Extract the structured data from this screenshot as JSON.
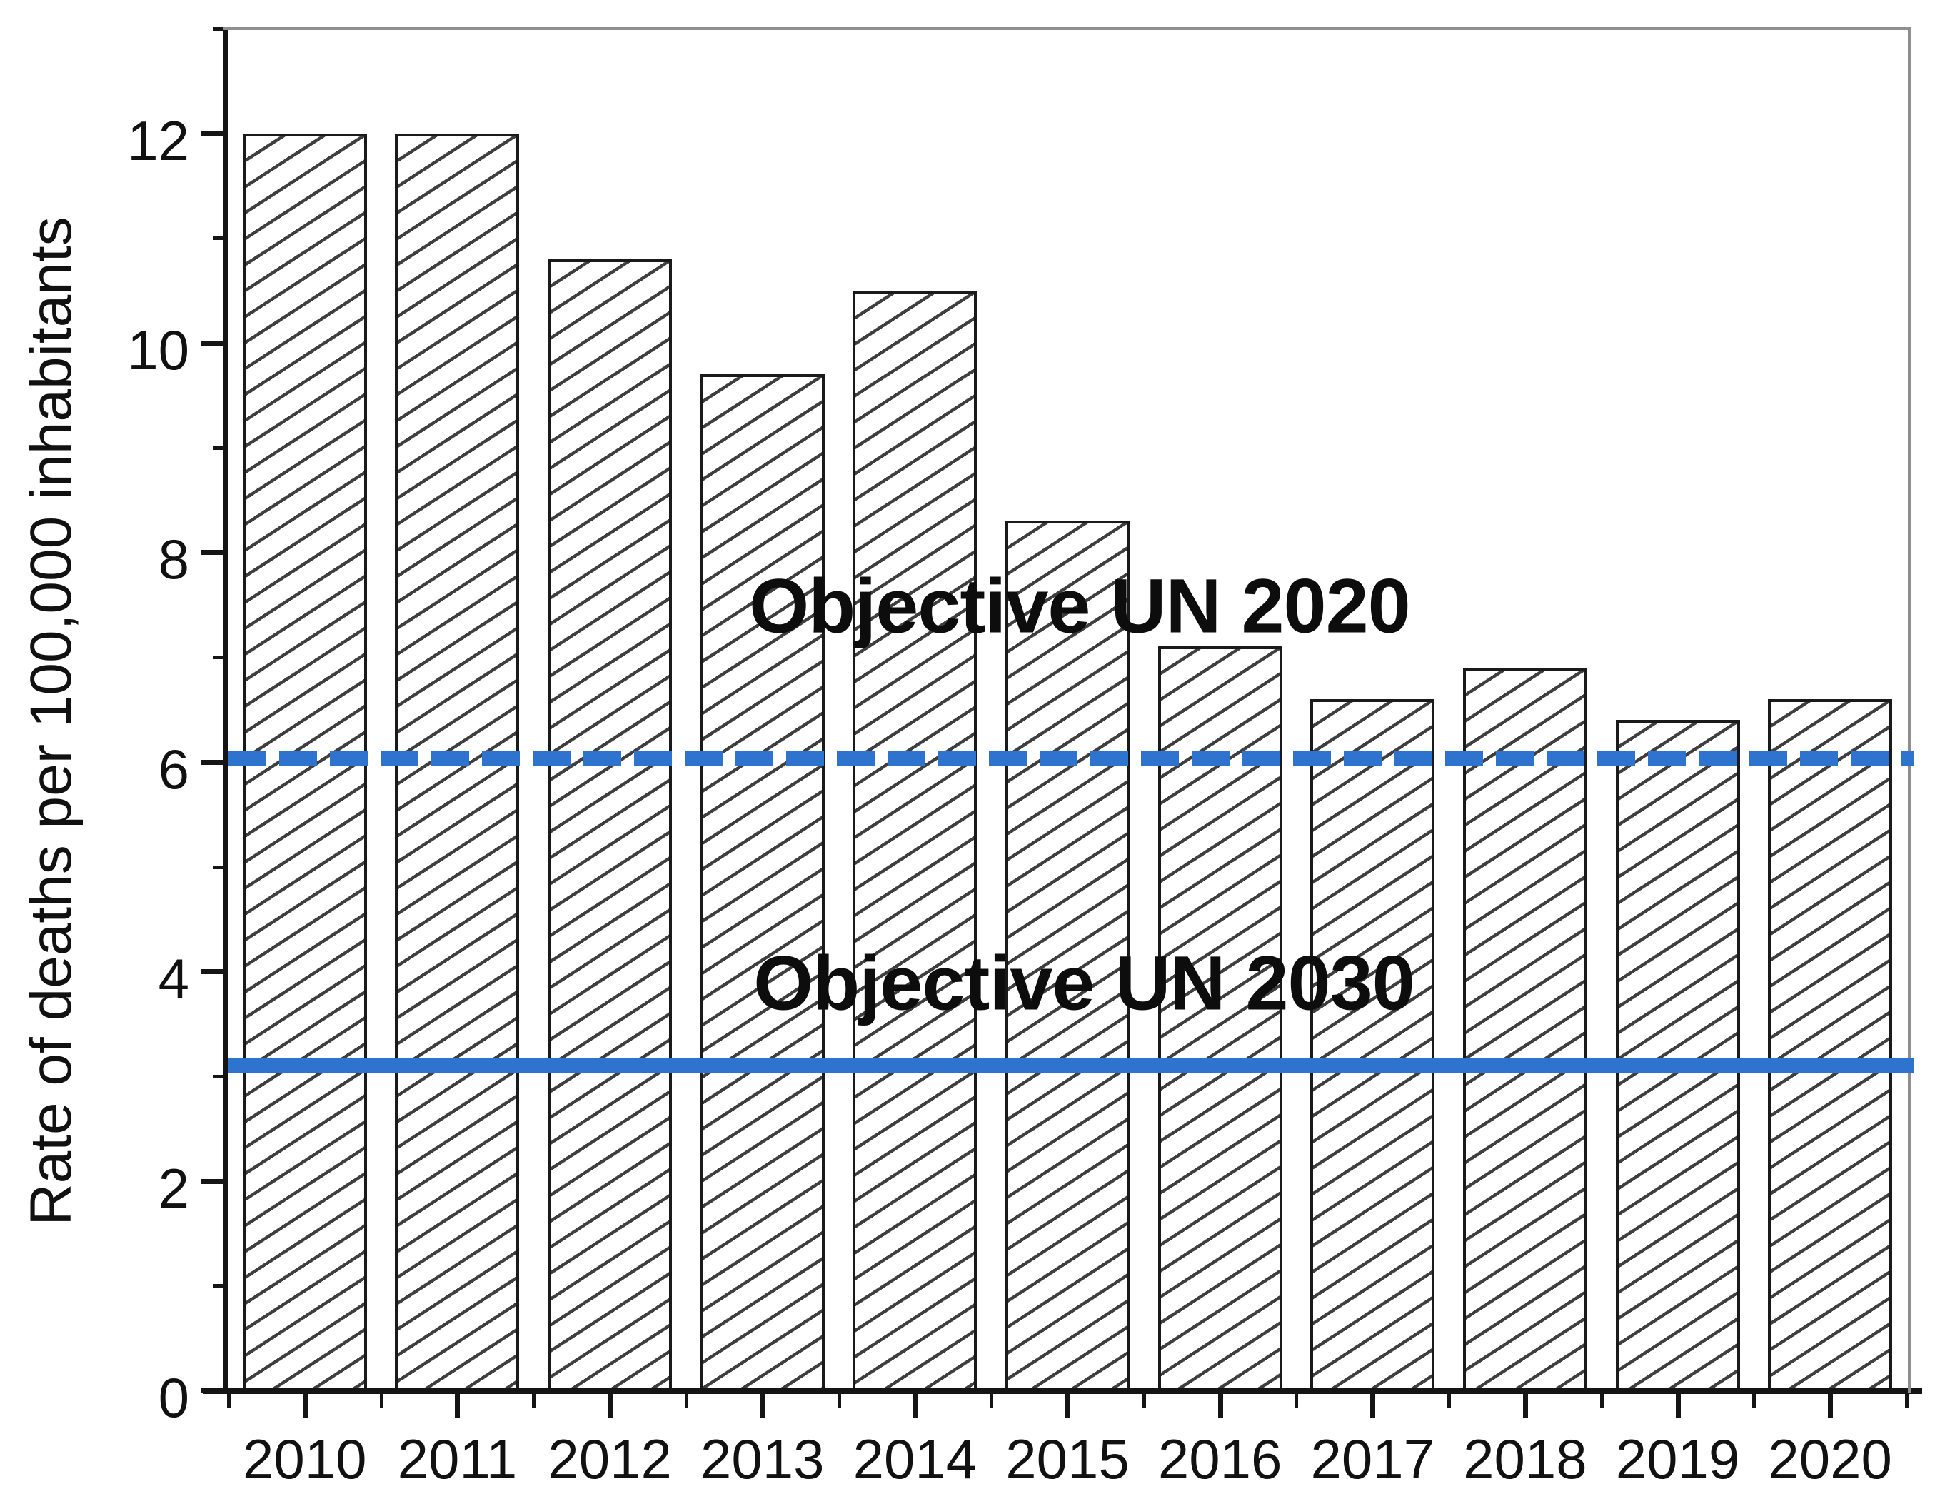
{
  "chart_data": {
    "type": "bar",
    "title": "",
    "xlabel": "",
    "ylabel": "Rate of deaths per 100,000 inhabitants",
    "categories": [
      "2010",
      "2011",
      "2012",
      "2013",
      "2014",
      "2015",
      "2016",
      "2017",
      "2018",
      "2019",
      "2020"
    ],
    "values": [
      12.0,
      12.0,
      10.8,
      9.7,
      10.5,
      8.3,
      7.1,
      6.6,
      6.9,
      6.4,
      6.6
    ],
    "ylim": [
      0,
      13
    ],
    "yticks_major": [
      0,
      2,
      4,
      6,
      8,
      10,
      12
    ],
    "yticks_minor": [
      1,
      3,
      5,
      7,
      9,
      11,
      13
    ],
    "grid": false,
    "legend": "none",
    "bar_style": {
      "fill": "#ffffff",
      "hatch": "diagonal-forward",
      "hatch_color": "#3f3f3f",
      "border_color": "#1a1a1a"
    },
    "reference_lines": [
      {
        "label": "Objective UN 2020",
        "value": 6.03,
        "style": "dashed",
        "color": "#2e74cf"
      },
      {
        "label": "Objective UN 2030",
        "value": 3.1,
        "style": "solid",
        "color": "#2e74cf"
      }
    ]
  }
}
